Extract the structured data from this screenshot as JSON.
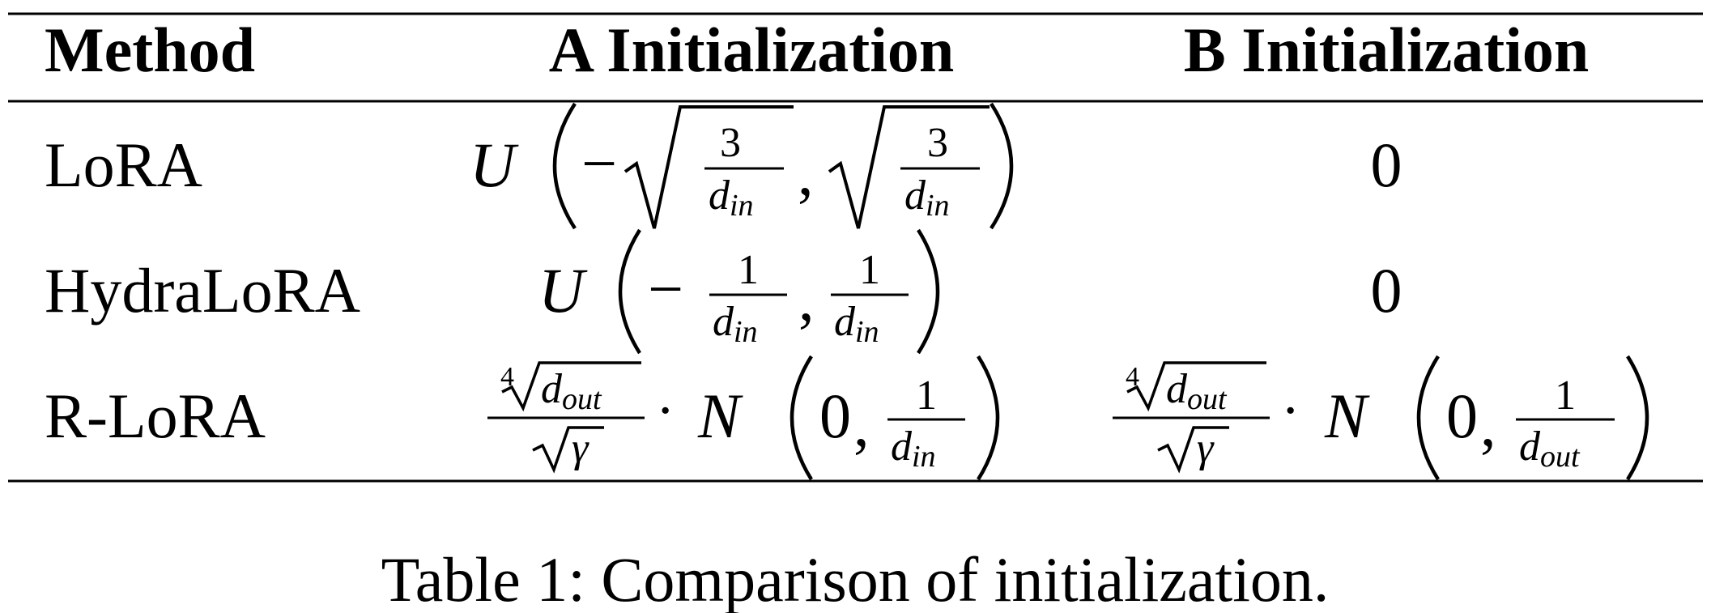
{
  "table": {
    "headers": {
      "method": "Method",
      "a_init": "A Initialization",
      "b_init": "B Initialization"
    },
    "rows": [
      {
        "method": "LoRA",
        "a_init": {
          "dist": "U",
          "minus": "−",
          "num": "3",
          "den_var": "d",
          "den_sub": "in",
          "comma": ","
        },
        "b_init": "0"
      },
      {
        "method": "HydraLoRA",
        "a_init": {
          "dist": "U",
          "minus": "−",
          "num": "1",
          "den_var": "d",
          "den_sub": "in",
          "comma": ","
        },
        "b_init": "0"
      },
      {
        "method": "R-LoRA",
        "a_init": {
          "root_index": "4",
          "root_var": "d",
          "root_sub": "out",
          "gamma": "γ",
          "cdot": "·",
          "dist": "N",
          "zero": "0",
          "comma": ",",
          "num": "1",
          "den_var": "d",
          "den_sub": "in"
        },
        "b_init": {
          "root_index": "4",
          "root_var": "d",
          "root_sub": "out",
          "gamma": "γ",
          "cdot": "·",
          "dist": "N",
          "zero": "0",
          "comma": ",",
          "num": "1",
          "den_var": "d",
          "den_sub": "out"
        }
      }
    ]
  },
  "caption": "Table 1: Comparison of initialization."
}
